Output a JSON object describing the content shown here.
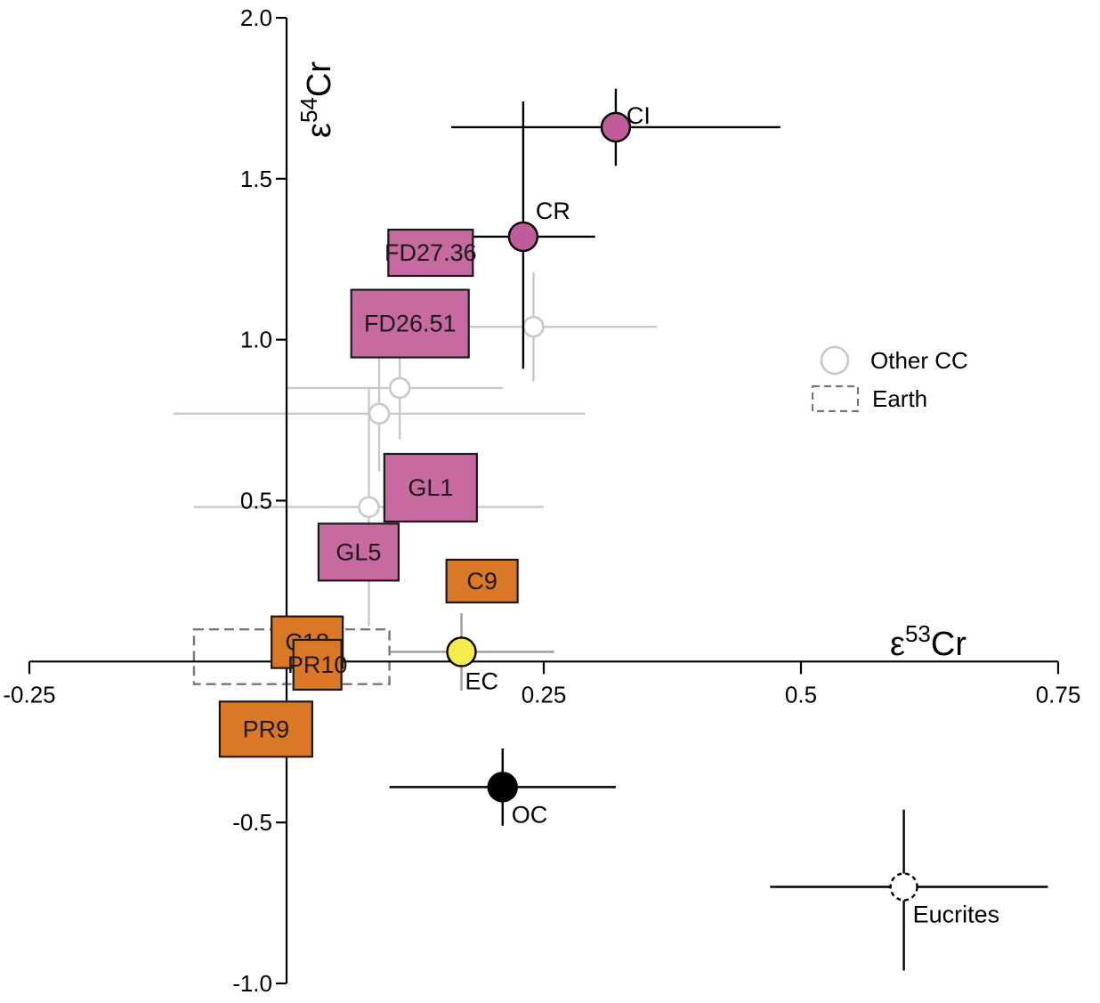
{
  "chart_data": {
    "type": "scatter",
    "title": "",
    "xlabel": {
      "prefix": "ε",
      "sup": "53",
      "suffix": "Cr"
    },
    "ylabel": {
      "prefix": "ε",
      "sup": "54",
      "suffix": "Cr"
    },
    "xlim": [
      -0.25,
      0.75
    ],
    "ylim": [
      -1.0,
      2.0
    ],
    "x_ticks": [
      {
        "value": -0.25,
        "label": "-0.25"
      },
      {
        "value": 0.25,
        "label": "0.25"
      },
      {
        "value": 0.5,
        "label": "0.5"
      },
      {
        "value": 0.75,
        "label": "0.75"
      }
    ],
    "y_ticks": [
      {
        "value": 2.0,
        "label": "2.0"
      },
      {
        "value": 1.5,
        "label": "1.5"
      },
      {
        "value": 1.0,
        "label": "1.0"
      },
      {
        "value": 0.5,
        "label": "0.5"
      },
      {
        "value": -0.5,
        "label": "-0.5"
      },
      {
        "value": -1.0,
        "label": "-1.0"
      }
    ],
    "grid": false,
    "other_cc": [
      {
        "x": 0.24,
        "y": 1.04,
        "xerr": [
          0.12,
          0.12
        ],
        "yerr": [
          0.17,
          0.17
        ]
      },
      {
        "x": 0.11,
        "y": 0.85,
        "xerr": [
          0.11,
          0.1
        ],
        "yerr": [
          0.16,
          0.16
        ]
      },
      {
        "x": 0.09,
        "y": 0.77,
        "xerr": [
          0.2,
          0.2
        ],
        "yerr": [
          0.18,
          0.18
        ]
      },
      {
        "x": 0.08,
        "y": 0.48,
        "xerr": [
          0.17,
          0.17
        ],
        "yerr": [
          0.37,
          0.37
        ]
      }
    ],
    "points": [
      {
        "label": "CI",
        "x": 0.32,
        "y": 1.66,
        "xerr": [
          0.16,
          0.16
        ],
        "yerr": [
          0.12,
          0.12
        ],
        "color": "#c15c9a",
        "error_color": "#000000",
        "label_pos": "right"
      },
      {
        "label": "CR",
        "x": 0.23,
        "y": 1.32,
        "xerr": [
          0.07,
          0.07
        ],
        "yerr": [
          0.41,
          0.42
        ],
        "color": "#c15c9a",
        "error_color": "#000000",
        "label_pos": "upper-right"
      },
      {
        "label": "EC",
        "x": 0.17,
        "y": 0.03,
        "xerr": [
          0.07,
          0.09
        ],
        "yerr": [
          0.12,
          0.12
        ],
        "color": "#f4ec4d",
        "error_color": "#999999",
        "label_pos": "below"
      },
      {
        "label": "OC",
        "x": 0.21,
        "y": -0.39,
        "xerr": [
          0.11,
          0.11
        ],
        "yerr": [
          0.12,
          0.12
        ],
        "color": "#000000",
        "error_color": "#000000",
        "label_pos": "lower-right"
      },
      {
        "label": "Eucrites",
        "x": 0.6,
        "y": -0.7,
        "xerr": [
          0.13,
          0.14
        ],
        "yerr": [
          0.26,
          0.24
        ],
        "color": "#ffffff",
        "error_color": "#000000",
        "dashed": true,
        "label_pos": "lower-right"
      }
    ],
    "samples": [
      {
        "label": "FD27.36",
        "x": 0.14,
        "y": 1.27,
        "color": "#c76aa0"
      },
      {
        "label": "FD26.51",
        "x": 0.12,
        "y": 1.05,
        "color": "#c76aa0"
      },
      {
        "label": "GL1",
        "x": 0.14,
        "y": 0.54,
        "color": "#c76aa0"
      },
      {
        "label": "GL5",
        "x": 0.07,
        "y": 0.34,
        "color": "#c76aa0"
      },
      {
        "label": "C9",
        "x": 0.19,
        "y": 0.25,
        "color": "#da7825"
      },
      {
        "label": "C18",
        "x": 0.02,
        "y": 0.06,
        "color": "#da7825"
      },
      {
        "label": "PR10",
        "x": 0.03,
        "y": -0.01,
        "color": "#da7825"
      },
      {
        "label": "PR9",
        "x": -0.02,
        "y": -0.21,
        "color": "#da7825"
      }
    ],
    "earth_box": {
      "x": [
        -0.09,
        0.1
      ],
      "y": [
        -0.07,
        0.1
      ],
      "color": "#777777"
    },
    "legend": {
      "position": "right-middle",
      "items": [
        {
          "label": "Other CC",
          "symbol": "open-circle",
          "color": "#bbbbbb"
        },
        {
          "label": "Earth",
          "symbol": "dashed-box",
          "color": "#777777"
        }
      ]
    }
  }
}
